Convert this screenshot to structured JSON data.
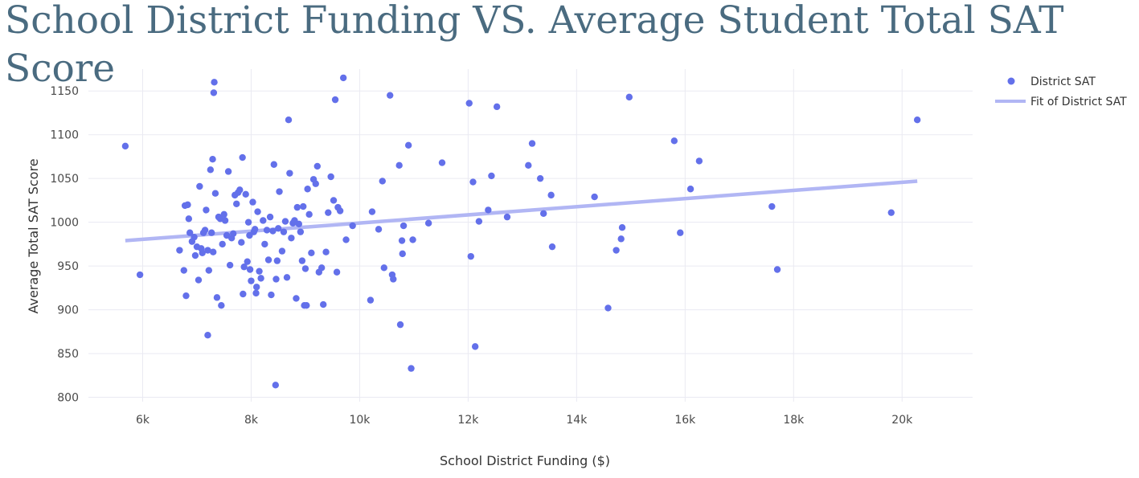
{
  "chart_data": {
    "type": "scatter",
    "title": "School District Funding VS. Average Student Total SAT Score",
    "xlabel": "School District Funding ($)",
    "ylabel": "Average Total SAT Score",
    "xlim": [
      5000,
      21300
    ],
    "ylim": [
      795,
      1175
    ],
    "x_ticks": [
      6000,
      8000,
      10000,
      12000,
      14000,
      16000,
      18000,
      20000
    ],
    "x_tick_labels": [
      "6k",
      "8k",
      "10k",
      "12k",
      "14k",
      "16k",
      "18k",
      "20k"
    ],
    "y_ticks": [
      800,
      850,
      900,
      950,
      1000,
      1050,
      1100,
      1150
    ],
    "y_tick_labels": [
      "800",
      "850",
      "900",
      "950",
      "1000",
      "1050",
      "1100",
      "1150"
    ],
    "grid": true,
    "legend_position": "top-right",
    "colors": {
      "points": "#6370ea",
      "fit": "#b1b6f4",
      "grid": "#eaeaf2",
      "title": "#4a6b80"
    },
    "series": [
      {
        "name": "District SAT",
        "type": "scatter",
        "points": [
          [
            5680,
            1087
          ],
          [
            5950,
            940
          ],
          [
            6680,
            968
          ],
          [
            6760,
            945
          ],
          [
            6780,
            1019
          ],
          [
            6800,
            916
          ],
          [
            6830,
            1020
          ],
          [
            6850,
            1004
          ],
          [
            6870,
            988
          ],
          [
            6910,
            978
          ],
          [
            6950,
            983
          ],
          [
            6970,
            962
          ],
          [
            7000,
            972
          ],
          [
            7030,
            934
          ],
          [
            7050,
            1041
          ],
          [
            7080,
            970
          ],
          [
            7100,
            965
          ],
          [
            7120,
            988
          ],
          [
            7150,
            991
          ],
          [
            7170,
            1014
          ],
          [
            7200,
            968
          ],
          [
            7220,
            945
          ],
          [
            7200,
            871
          ],
          [
            7250,
            1060
          ],
          [
            7270,
            988
          ],
          [
            7290,
            1072
          ],
          [
            7300,
            966
          ],
          [
            7310,
            1148
          ],
          [
            7320,
            1160
          ],
          [
            7340,
            1033
          ],
          [
            7370,
            914
          ],
          [
            7400,
            1006
          ],
          [
            7430,
            1004
          ],
          [
            7450,
            905
          ],
          [
            7470,
            975
          ],
          [
            7500,
            1009
          ],
          [
            7520,
            1002
          ],
          [
            7550,
            985
          ],
          [
            7580,
            1058
          ],
          [
            7610,
            951
          ],
          [
            7640,
            982
          ],
          [
            7670,
            987
          ],
          [
            7700,
            1031
          ],
          [
            7730,
            1021
          ],
          [
            7760,
            1034
          ],
          [
            7790,
            1037
          ],
          [
            7820,
            977
          ],
          [
            7840,
            1074
          ],
          [
            7850,
            918
          ],
          [
            7870,
            949
          ],
          [
            7900,
            1032
          ],
          [
            7930,
            955
          ],
          [
            7950,
            1000
          ],
          [
            7970,
            985
          ],
          [
            7980,
            946
          ],
          [
            8000,
            933
          ],
          [
            8030,
            1023
          ],
          [
            8050,
            989
          ],
          [
            8070,
            992
          ],
          [
            8090,
            919
          ],
          [
            8100,
            926
          ],
          [
            8120,
            1012
          ],
          [
            8150,
            944
          ],
          [
            8180,
            936
          ],
          [
            8220,
            1002
          ],
          [
            8250,
            975
          ],
          [
            8290,
            991
          ],
          [
            8320,
            957
          ],
          [
            8350,
            1006
          ],
          [
            8370,
            917
          ],
          [
            8400,
            990
          ],
          [
            8420,
            1066
          ],
          [
            8450,
            814
          ],
          [
            8460,
            935
          ],
          [
            8480,
            956
          ],
          [
            8500,
            993
          ],
          [
            8520,
            1035
          ],
          [
            8570,
            967
          ],
          [
            8600,
            989
          ],
          [
            8630,
            1001
          ],
          [
            8660,
            937
          ],
          [
            8690,
            1117
          ],
          [
            8710,
            1056
          ],
          [
            8740,
            982
          ],
          [
            8770,
            999
          ],
          [
            8800,
            1002
          ],
          [
            8830,
            913
          ],
          [
            8850,
            1017
          ],
          [
            8880,
            998
          ],
          [
            8910,
            989
          ],
          [
            8940,
            956
          ],
          [
            8960,
            1018
          ],
          [
            8980,
            905
          ],
          [
            9000,
            947
          ],
          [
            9020,
            905
          ],
          [
            9040,
            1038
          ],
          [
            9070,
            1009
          ],
          [
            9110,
            965
          ],
          [
            9150,
            1049
          ],
          [
            9190,
            1044
          ],
          [
            9220,
            1064
          ],
          [
            9250,
            943
          ],
          [
            9300,
            948
          ],
          [
            9330,
            906
          ],
          [
            9380,
            966
          ],
          [
            9420,
            1011
          ],
          [
            9470,
            1052
          ],
          [
            9520,
            1025
          ],
          [
            9550,
            1140
          ],
          [
            9580,
            943
          ],
          [
            9600,
            1017
          ],
          [
            9640,
            1013
          ],
          [
            9700,
            1165
          ],
          [
            9750,
            980
          ],
          [
            9870,
            996
          ],
          [
            10200,
            911
          ],
          [
            10230,
            1012
          ],
          [
            10350,
            992
          ],
          [
            10420,
            1047
          ],
          [
            10450,
            948
          ],
          [
            10560,
            1145
          ],
          [
            10600,
            940
          ],
          [
            10620,
            935
          ],
          [
            10730,
            1065
          ],
          [
            10750,
            883
          ],
          [
            10780,
            979
          ],
          [
            10790,
            964
          ],
          [
            10810,
            996
          ],
          [
            10900,
            1088
          ],
          [
            10950,
            833
          ],
          [
            10980,
            980
          ],
          [
            11270,
            999
          ],
          [
            11520,
            1068
          ],
          [
            12020,
            1136
          ],
          [
            12050,
            961
          ],
          [
            12090,
            1046
          ],
          [
            12130,
            858
          ],
          [
            12200,
            1001
          ],
          [
            12370,
            1014
          ],
          [
            12430,
            1053
          ],
          [
            12530,
            1132
          ],
          [
            12720,
            1006
          ],
          [
            13110,
            1065
          ],
          [
            13180,
            1090
          ],
          [
            13330,
            1050
          ],
          [
            13390,
            1010
          ],
          [
            13530,
            1031
          ],
          [
            13550,
            972
          ],
          [
            14330,
            1029
          ],
          [
            14580,
            902
          ],
          [
            14730,
            968
          ],
          [
            14820,
            981
          ],
          [
            14840,
            994
          ],
          [
            14970,
            1143
          ],
          [
            15800,
            1093
          ],
          [
            15910,
            988
          ],
          [
            16100,
            1038
          ],
          [
            16260,
            1070
          ],
          [
            17600,
            1018
          ],
          [
            17700,
            946
          ],
          [
            19800,
            1011
          ],
          [
            20280,
            1117
          ]
        ]
      },
      {
        "name": "Fit of District SAT",
        "type": "line",
        "points": [
          [
            5680,
            979
          ],
          [
            20280,
            1047
          ]
        ]
      }
    ]
  }
}
